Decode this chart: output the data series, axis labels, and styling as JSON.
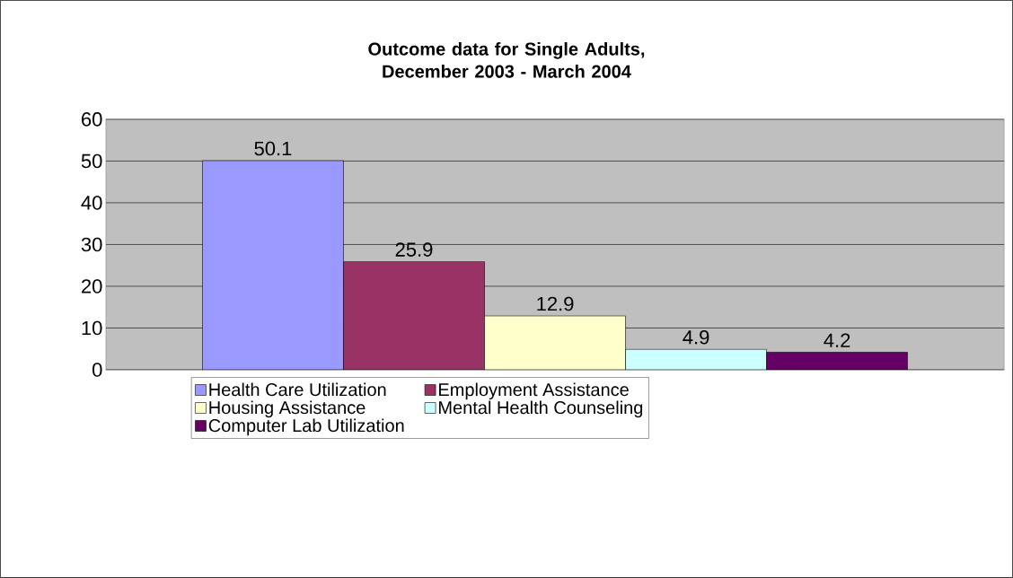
{
  "chart_data": {
    "type": "bar",
    "title": "Outcome data for Single Adults, December 2003 - March 2004",
    "categories": [
      null
    ],
    "series": [
      {
        "name": "Health Care Utilization",
        "color": "#9999ff",
        "values": [
          50.1
        ]
      },
      {
        "name": "Employment Assistance",
        "color": "#993366",
        "values": [
          25.9
        ]
      },
      {
        "name": "Housing Assistance",
        "color": "#ffffcc",
        "values": [
          12.9
        ]
      },
      {
        "name": "Mental Health Counseling",
        "color": "#ccffff",
        "values": [
          4.9
        ]
      },
      {
        "name": "Computer Lab Utilization",
        "color": "#660066",
        "values": [
          4.2
        ]
      }
    ],
    "ylim": [
      0,
      60
    ],
    "yticks": [
      0,
      10,
      20,
      30,
      40,
      50,
      60
    ],
    "grid": "y",
    "legend": "bottom",
    "data_labels": true
  }
}
